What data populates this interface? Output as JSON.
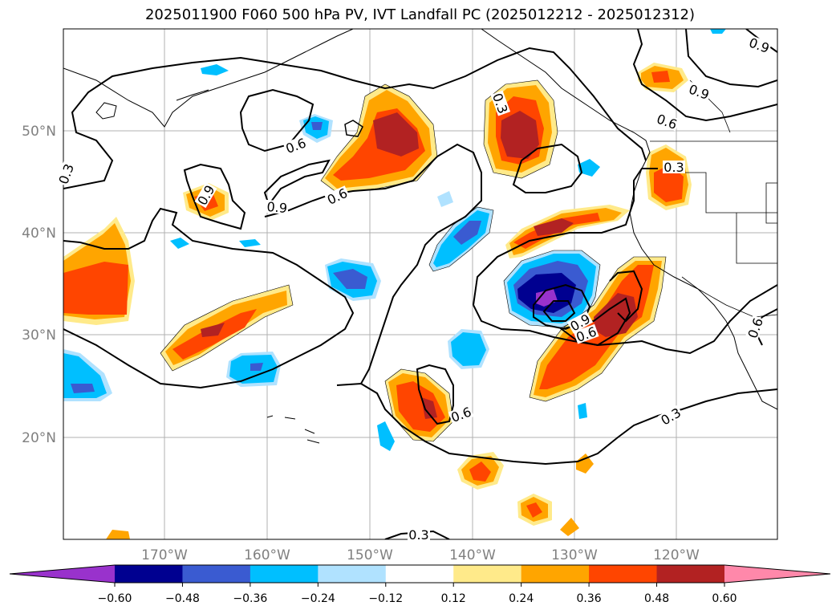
{
  "title": "2025011900 F060 500 hPa PV, IVT Landfall PC (2025012212 - 2025012312)",
  "colors": {
    "lt_-060": "#9932cc",
    "m060_m048": "#000090",
    "m048_m036": "#3a5bd1",
    "m036_m024": "#00bfff",
    "m024_m012": "#b0e2ff",
    "m012_012": "#ffffff",
    "p012_p024": "#ffea8a",
    "p024_p036": "#ffa500",
    "p036_p048": "#ff4500",
    "p048_p060": "#b22222",
    "gt_060": "#ff88aa"
  },
  "lat_labels": [
    "50°N",
    "40°N",
    "30°N",
    "20°N"
  ],
  "lon_labels": [
    "170°W",
    "160°W",
    "150°W",
    "140°W",
    "130°W",
    "120°W"
  ],
  "contour_labels": [
    "0.3",
    "0.6",
    "0.9",
    "0.9",
    "0.6",
    "0.3",
    "0.9",
    "0.6",
    "0.3",
    "0.6",
    "0.9",
    "0.6",
    "0.6",
    "0.9",
    "0.3",
    "0.3"
  ],
  "colorbar": {
    "ticks": [
      "−0.60",
      "−0.48",
      "−0.36",
      "−0.24",
      "−0.12",
      "0.12",
      "0.24",
      "0.36",
      "0.48",
      "0.60"
    ]
  }
}
